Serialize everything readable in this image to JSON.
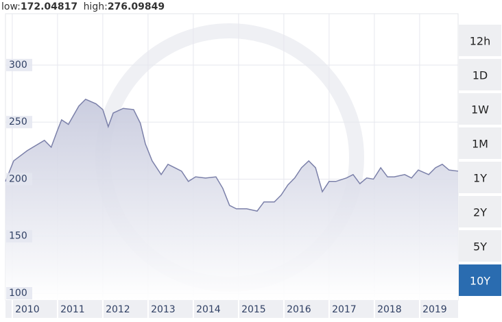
{
  "header": {
    "low_label": "low:",
    "low": 172.04817,
    "high_label": "high:",
    "high": 276.09849
  },
  "chart_data": {
    "type": "area",
    "color": "#7b80a9",
    "x": [
      2009.85,
      2010.03,
      2010.33,
      2010.71,
      2010.86,
      2011.0,
      2011.09,
      2011.24,
      2011.47,
      2011.62,
      2011.85,
      2012.0,
      2012.12,
      2012.23,
      2012.45,
      2012.68,
      2012.83,
      2012.94,
      2013.09,
      2013.29,
      2013.44,
      2013.74,
      2013.89,
      2014.05,
      2014.27,
      2014.5,
      2014.65,
      2014.8,
      2014.95,
      2015.18,
      2015.41,
      2015.56,
      2015.79,
      2015.94,
      2016.09,
      2016.24,
      2016.39,
      2016.55,
      2016.7,
      2016.85,
      2017.0,
      2017.15,
      2017.38,
      2017.53,
      2017.68,
      2017.83,
      2017.98,
      2018.14,
      2018.29,
      2018.44,
      2018.67,
      2018.82,
      2018.97,
      2019.2,
      2019.35,
      2019.5,
      2019.65,
      2019.85
    ],
    "values": [
      198,
      216,
      225,
      234,
      228,
      243,
      252,
      248,
      264,
      270,
      266,
      261,
      246,
      258,
      262,
      261,
      249,
      231,
      216,
      204,
      213,
      207,
      198,
      202,
      201,
      202,
      192,
      177,
      174,
      174,
      172,
      180,
      180,
      186,
      195,
      201,
      210,
      216,
      210,
      189,
      198,
      198,
      201,
      204,
      196,
      201,
      200,
      210,
      202,
      202,
      204,
      201,
      208,
      204,
      210,
      213,
      208,
      207
    ],
    "xlim": [
      2009.85,
      2019.85
    ],
    "xticks": [
      2010,
      2011,
      2012,
      2013,
      2014,
      2015,
      2016,
      2017,
      2018,
      2019
    ],
    "ylim": [
      94,
      345
    ],
    "yticks": [
      100,
      150,
      200,
      250,
      300
    ],
    "grid": true
  },
  "buttons": [
    "12h",
    "1D",
    "1W",
    "1M",
    "1Y",
    "2Y",
    "5Y",
    "10Y"
  ],
  "selected": "10Y"
}
